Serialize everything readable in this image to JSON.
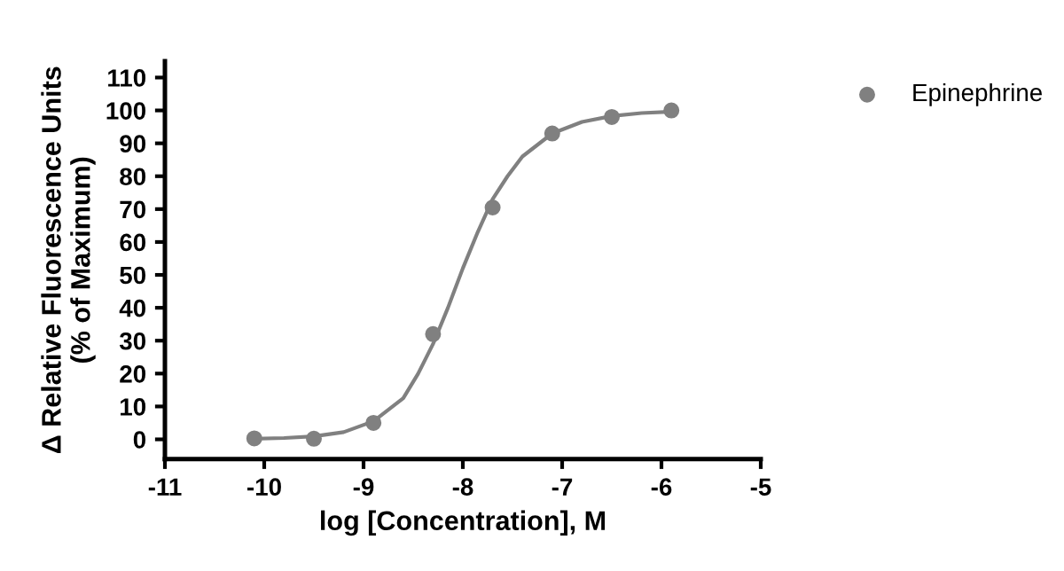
{
  "chart_data": {
    "type": "scatter",
    "xlabel": "log [Concentration], M",
    "ylabel": "Δ Relative Fluorescence Units\n(% of Maximum)",
    "xlim": [
      -11,
      -5
    ],
    "xticks": [
      -11,
      -10,
      -9,
      -8,
      -7,
      -6,
      -5
    ],
    "ylim": [
      -6,
      115
    ],
    "yticks": [
      0,
      10,
      20,
      30,
      40,
      50,
      60,
      70,
      80,
      90,
      100,
      110
    ],
    "grid": false,
    "legend": "top right",
    "series": [
      {
        "name": "Epinephrine",
        "marker": "circle",
        "color": "#808080",
        "x": [
          -10.1,
          -9.5,
          -8.9,
          -8.3,
          -7.7,
          -7.1,
          -6.5,
          -5.9
        ],
        "values": [
          0.3,
          0.2,
          5,
          32,
          70.5,
          93,
          98,
          100
        ]
      },
      {
        "type": "line",
        "marker": "none",
        "color": "#808080",
        "line_style": "solid",
        "x": [
          -10.1,
          -9.8,
          -9.5,
          -9.2,
          -8.9,
          -8.6,
          -8.45,
          -8.3,
          -8.15,
          -8.0,
          -7.85,
          -7.7,
          -7.55,
          -7.4,
          -7.1,
          -6.8,
          -6.5,
          -6.2,
          -5.9
        ],
        "values": [
          0.2,
          0.4,
          0.9,
          2.2,
          5.5,
          12.5,
          20,
          29,
          40,
          52,
          63,
          73,
          80,
          86,
          93,
          96.5,
          98.3,
          99.2,
          99.6
        ]
      }
    ]
  }
}
